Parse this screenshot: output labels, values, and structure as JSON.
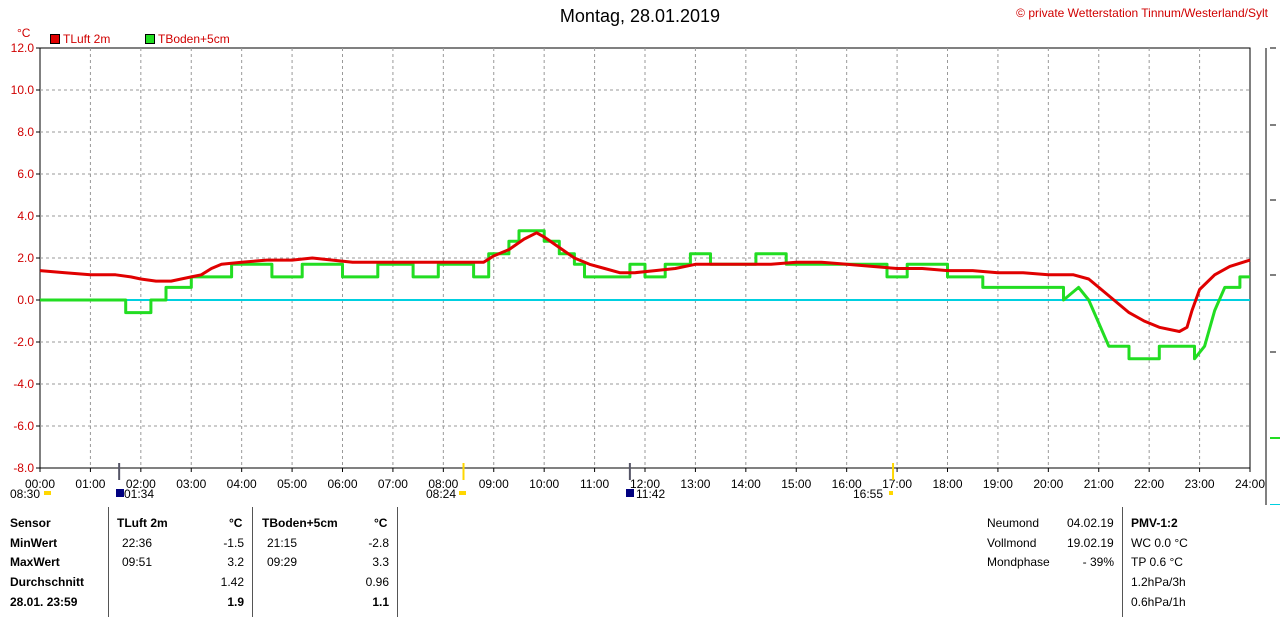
{
  "header": {
    "title": "Montag, 28.01.2019",
    "copyright": "© private Wetterstation Tinnum/Westerland/Sylt",
    "unit": "°C"
  },
  "legend": [
    {
      "label": "TLuft 2m",
      "color": "#e00000"
    },
    {
      "label": "TBoden+5cm",
      "color": "#22dd22"
    }
  ],
  "sun_moon": {
    "sunrise": "08:24",
    "sunset": "16:55",
    "moonset": "11:42",
    "moonrise": "01:34",
    "prev_label": "08:30"
  },
  "stats": {
    "sensor_label": "Sensor",
    "min_label": "MinWert",
    "max_label": "MaxWert",
    "avg_label": "Durchschnitt",
    "last_label": "28.01. 23:59",
    "tluft": {
      "header": "TLuft 2m",
      "unit": "°C",
      "min_time": "22:36",
      "min": "-1.5",
      "max_time": "09:51",
      "max": "3.2",
      "avg": "1.42",
      "last": "1.9"
    },
    "tboden": {
      "header": "TBoden+5cm",
      "unit": "°C",
      "min_time": "21:15",
      "min": "-2.8",
      "max_time": "09:29",
      "max": "3.3",
      "avg": "0.96",
      "last": "1.1"
    },
    "moon": {
      "new_label": "Neumond",
      "new_date": "04.02.19",
      "full_label": "Vollmond",
      "full_date": "19.02.19",
      "phase_label": "Mondphase",
      "phase_value": "- 39%"
    },
    "pmv": {
      "header": "PMV-1:2",
      "wc": "WC 0.0 °C",
      "tp": "TP 0.6 °C",
      "p3": "1.2hPa/3h",
      "p1": "0.6hPa/1h"
    }
  },
  "chart_data": {
    "type": "line",
    "xlabel": "",
    "ylabel": "°C",
    "ylim": [
      -8,
      12
    ],
    "xlim": [
      0,
      24
    ],
    "y_ticks": [
      "12.0",
      "10.0",
      "8.0",
      "6.0",
      "4.0",
      "2.0",
      "0.0",
      "-2.0",
      "-4.0",
      "-6.0",
      "-8.0"
    ],
    "x_ticks": [
      "00:00",
      "01:00",
      "02:00",
      "03:00",
      "04:00",
      "05:00",
      "06:00",
      "07:00",
      "08:00",
      "09:00",
      "10:00",
      "11:00",
      "12:00",
      "13:00",
      "14:00",
      "15:00",
      "16:00",
      "17:00",
      "18:00",
      "19:00",
      "20:00",
      "21:00",
      "22:00",
      "23:00",
      "24:00"
    ],
    "grid": true,
    "zero_line_color": "#00d0e0",
    "series": [
      {
        "name": "TLuft 2m",
        "color": "#e00000",
        "points": [
          [
            0,
            1.4
          ],
          [
            0.5,
            1.3
          ],
          [
            1,
            1.2
          ],
          [
            1.5,
            1.2
          ],
          [
            1.8,
            1.1
          ],
          [
            2.0,
            1.0
          ],
          [
            2.3,
            0.9
          ],
          [
            2.6,
            0.9
          ],
          [
            2.8,
            1.0
          ],
          [
            3.0,
            1.1
          ],
          [
            3.2,
            1.2
          ],
          [
            3.4,
            1.5
          ],
          [
            3.6,
            1.7
          ],
          [
            4.0,
            1.8
          ],
          [
            4.5,
            1.9
          ],
          [
            5.0,
            1.9
          ],
          [
            5.4,
            2.0
          ],
          [
            5.8,
            1.9
          ],
          [
            6.2,
            1.8
          ],
          [
            6.5,
            1.8
          ],
          [
            7.0,
            1.8
          ],
          [
            7.5,
            1.8
          ],
          [
            8.0,
            1.8
          ],
          [
            8.5,
            1.8
          ],
          [
            8.8,
            1.8
          ],
          [
            9.0,
            2.1
          ],
          [
            9.3,
            2.4
          ],
          [
            9.6,
            2.9
          ],
          [
            9.85,
            3.2
          ],
          [
            10.0,
            3.0
          ],
          [
            10.3,
            2.5
          ],
          [
            10.6,
            2.0
          ],
          [
            10.9,
            1.7
          ],
          [
            11.2,
            1.5
          ],
          [
            11.5,
            1.3
          ],
          [
            11.8,
            1.3
          ],
          [
            12.2,
            1.4
          ],
          [
            12.6,
            1.5
          ],
          [
            13.0,
            1.7
          ],
          [
            13.5,
            1.7
          ],
          [
            14.0,
            1.7
          ],
          [
            14.5,
            1.7
          ],
          [
            15.0,
            1.8
          ],
          [
            15.5,
            1.8
          ],
          [
            16.0,
            1.7
          ],
          [
            16.5,
            1.6
          ],
          [
            17.0,
            1.5
          ],
          [
            17.5,
            1.5
          ],
          [
            18.0,
            1.4
          ],
          [
            18.5,
            1.4
          ],
          [
            19.0,
            1.3
          ],
          [
            19.5,
            1.3
          ],
          [
            20.0,
            1.2
          ],
          [
            20.5,
            1.2
          ],
          [
            20.8,
            1.0
          ],
          [
            21.0,
            0.6
          ],
          [
            21.3,
            0.0
          ],
          [
            21.6,
            -0.6
          ],
          [
            21.9,
            -1.0
          ],
          [
            22.2,
            -1.3
          ],
          [
            22.6,
            -1.5
          ],
          [
            22.75,
            -1.3
          ],
          [
            22.85,
            -0.5
          ],
          [
            23.0,
            0.5
          ],
          [
            23.3,
            1.2
          ],
          [
            23.6,
            1.6
          ],
          [
            24.0,
            1.9
          ]
        ]
      },
      {
        "name": "TBoden+5cm",
        "color": "#22dd22",
        "points": [
          [
            0,
            0.0
          ],
          [
            1.7,
            0.0
          ],
          [
            1.7,
            -0.6
          ],
          [
            2.2,
            -0.6
          ],
          [
            2.2,
            0.0
          ],
          [
            2.5,
            0.0
          ],
          [
            2.5,
            0.6
          ],
          [
            3.0,
            0.6
          ],
          [
            3.0,
            1.1
          ],
          [
            3.8,
            1.1
          ],
          [
            3.8,
            1.7
          ],
          [
            4.6,
            1.7
          ],
          [
            4.6,
            1.1
          ],
          [
            5.2,
            1.1
          ],
          [
            5.2,
            1.7
          ],
          [
            6.0,
            1.7
          ],
          [
            6.0,
            1.1
          ],
          [
            6.7,
            1.1
          ],
          [
            6.7,
            1.7
          ],
          [
            7.4,
            1.7
          ],
          [
            7.4,
            1.1
          ],
          [
            7.9,
            1.1
          ],
          [
            7.9,
            1.7
          ],
          [
            8.6,
            1.7
          ],
          [
            8.6,
            1.1
          ],
          [
            8.9,
            1.1
          ],
          [
            8.9,
            2.2
          ],
          [
            9.3,
            2.2
          ],
          [
            9.3,
            2.8
          ],
          [
            9.5,
            2.8
          ],
          [
            9.5,
            3.3
          ],
          [
            10.0,
            3.3
          ],
          [
            10.0,
            2.8
          ],
          [
            10.3,
            2.8
          ],
          [
            10.3,
            2.2
          ],
          [
            10.6,
            2.2
          ],
          [
            10.6,
            1.7
          ],
          [
            10.8,
            1.7
          ],
          [
            10.8,
            1.1
          ],
          [
            11.7,
            1.1
          ],
          [
            11.7,
            1.7
          ],
          [
            12.0,
            1.7
          ],
          [
            12.0,
            1.1
          ],
          [
            12.4,
            1.1
          ],
          [
            12.4,
            1.7
          ],
          [
            12.9,
            1.7
          ],
          [
            12.9,
            2.2
          ],
          [
            13.3,
            2.2
          ],
          [
            13.3,
            1.7
          ],
          [
            14.2,
            1.7
          ],
          [
            14.2,
            2.2
          ],
          [
            14.8,
            2.2
          ],
          [
            14.8,
            1.7
          ],
          [
            16.8,
            1.7
          ],
          [
            16.8,
            1.1
          ],
          [
            17.2,
            1.1
          ],
          [
            17.2,
            1.7
          ],
          [
            18.0,
            1.7
          ],
          [
            18.0,
            1.1
          ],
          [
            18.7,
            1.1
          ],
          [
            18.7,
            0.6
          ],
          [
            19.4,
            0.6
          ],
          [
            19.4,
            0.6
          ],
          [
            20.0,
            0.6
          ],
          [
            20.3,
            0.6
          ],
          [
            20.3,
            0.0
          ],
          [
            20.6,
            0.6
          ],
          [
            20.8,
            0.0
          ],
          [
            21.0,
            -1.1
          ],
          [
            21.2,
            -2.2
          ],
          [
            21.6,
            -2.2
          ],
          [
            21.6,
            -2.8
          ],
          [
            22.2,
            -2.8
          ],
          [
            22.2,
            -2.2
          ],
          [
            22.9,
            -2.2
          ],
          [
            22.9,
            -2.8
          ],
          [
            23.1,
            -2.2
          ],
          [
            23.3,
            -0.5
          ],
          [
            23.5,
            0.6
          ],
          [
            23.8,
            0.6
          ],
          [
            23.8,
            1.1
          ],
          [
            24.0,
            1.1
          ]
        ]
      }
    ]
  }
}
